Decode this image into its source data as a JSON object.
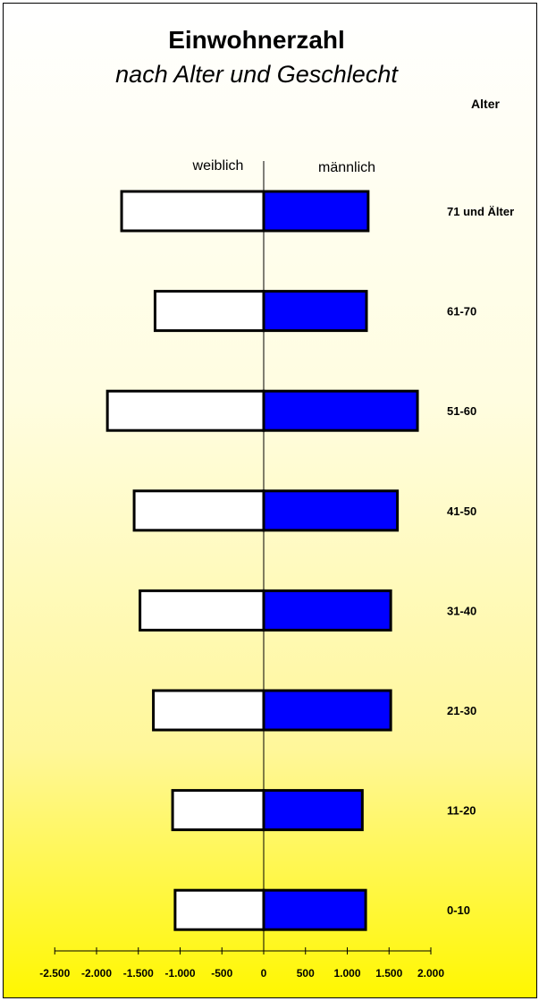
{
  "colors": {
    "male_fill": "#0000ff",
    "female_fill": "#ffffff",
    "outline": "#000000",
    "background_top": "#ffffff",
    "background_bottom": "#fff700"
  },
  "chart_data": {
    "type": "bar",
    "orientation": "horizontal",
    "title": "Einwohnerzahl",
    "subtitle": "nach Alter und Geschlecht",
    "category_axis_label": "Alter",
    "categories": [
      "71 und Älter",
      "61-70",
      "51-60",
      "41-50",
      "31-40",
      "21-30",
      "11-20",
      "0-10"
    ],
    "series": [
      {
        "name": "weiblich",
        "values": [
          -1700,
          -1300,
          -1870,
          -1550,
          -1480,
          -1320,
          -1090,
          -1060
        ]
      },
      {
        "name": "männlich",
        "values": [
          1250,
          1230,
          1840,
          1600,
          1520,
          1520,
          1180,
          1220
        ]
      }
    ],
    "x_ticks": [
      "-2.500",
      "-2.000",
      "-1.500",
      "-1.000",
      "-500",
      "0",
      "500",
      "1.000",
      "1.500",
      "2.000"
    ],
    "xlim": [
      -2500,
      2000
    ],
    "grid": false,
    "legend": "series labels above bars"
  }
}
